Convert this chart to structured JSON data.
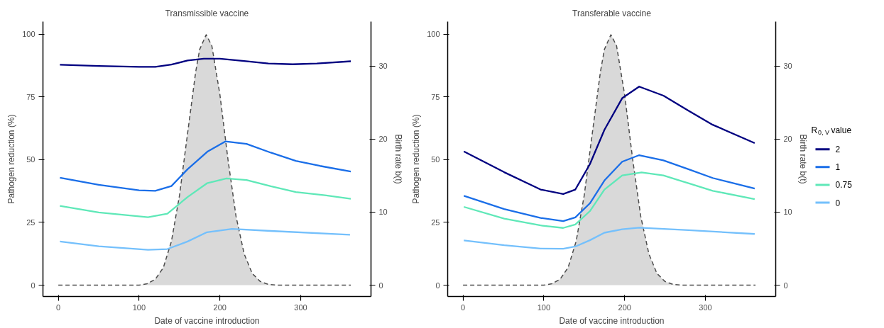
{
  "chart_data": [
    {
      "type": "line",
      "title": "Transmissible vaccine",
      "xlabel": "Date of vaccine introduction",
      "ylabel": "Pathogen reduction (%)",
      "y2label": "Birth rate b(t)",
      "xlim": [
        -19,
        387
      ],
      "xticks": [
        0,
        100,
        200,
        300
      ],
      "ylim": [
        -4.5,
        105
      ],
      "yticks": [
        0,
        25,
        50,
        75,
        100
      ],
      "y2lim": [
        -1.55,
        36.1
      ],
      "y2ticks": [
        0,
        10,
        20,
        30
      ],
      "grid": false,
      "legend": false,
      "series": [
        {
          "type": "area",
          "axis": "y2",
          "color": "#d9d9d9",
          "line_style": "dashed",
          "x": [
            0,
            50,
            100,
            110,
            120,
            130,
            140,
            150,
            160,
            170,
            175,
            183,
            190,
            200,
            210,
            220,
            230,
            240,
            250,
            260,
            270,
            320,
            362
          ],
          "values": [
            0,
            0,
            0,
            0.2,
            0.8,
            2.4,
            6.0,
            12.3,
            20.8,
            29.2,
            32.3,
            34.3,
            32.8,
            26.1,
            17.2,
            9.4,
            4.3,
            1.6,
            0.5,
            0.1,
            0,
            0,
            0
          ]
        },
        {
          "color": "#000080",
          "x": [
            2,
            50,
            100,
            120,
            140,
            160,
            180,
            200,
            230,
            260,
            290,
            320,
            362
          ],
          "values": [
            87.8,
            87.3,
            87.0,
            87.0,
            87.9,
            89.5,
            90.2,
            90.2,
            89.3,
            88.3,
            88.0,
            88.3,
            89.2
          ]
        },
        {
          "color": "#1a6ee8",
          "x": [
            2,
            50,
            100,
            120,
            140,
            160,
            185,
            207,
            233,
            263,
            294,
            324,
            362
          ],
          "values": [
            42.8,
            40.0,
            37.8,
            37.6,
            39.5,
            46.2,
            53.3,
            57.3,
            56.3,
            52.8,
            49.5,
            47.5,
            45.3
          ]
        },
        {
          "color": "#5fe8b8",
          "x": [
            2,
            50,
            111,
            135,
            160,
            184,
            208,
            233,
            263,
            294,
            330,
            362
          ],
          "values": [
            31.6,
            29.0,
            27.1,
            28.5,
            35.1,
            40.6,
            42.5,
            41.9,
            39.4,
            37.1,
            35.8,
            34.4
          ]
        },
        {
          "color": "#74c0fc",
          "x": [
            2,
            50,
            111,
            135,
            160,
            184,
            215,
            263,
            361
          ],
          "values": [
            17.4,
            15.5,
            14.1,
            14.4,
            17.4,
            21.1,
            22.4,
            21.6,
            20.1
          ]
        }
      ]
    },
    {
      "type": "line",
      "title": "Transferable vaccine",
      "xlabel": "Date of vaccine introduction",
      "ylabel": "Pathogen reduction (%)",
      "y2label": "Birth rate b(t)",
      "legend_title": "R$_{0, V}$ value",
      "xlim": [
        -19,
        387
      ],
      "xticks": [
        0,
        100,
        200,
        300
      ],
      "ylim": [
        -4.5,
        105
      ],
      "yticks": [
        0,
        25,
        50,
        75,
        100
      ],
      "y2lim": [
        -1.55,
        36.1
      ],
      "y2ticks": [
        0,
        10,
        20,
        30
      ],
      "grid": false,
      "legend": "right",
      "series": [
        {
          "type": "area",
          "axis": "y2",
          "color": "#d9d9d9",
          "line_style": "dashed",
          "x": [
            0,
            50,
            100,
            110,
            120,
            130,
            140,
            150,
            160,
            170,
            175,
            183,
            190,
            200,
            210,
            220,
            230,
            240,
            250,
            260,
            270,
            320,
            362
          ],
          "values": [
            0,
            0,
            0,
            0.2,
            0.8,
            2.4,
            6.0,
            12.3,
            20.8,
            29.2,
            32.3,
            34.3,
            32.8,
            26.1,
            17.2,
            9.4,
            4.3,
            1.6,
            0.5,
            0.1,
            0,
            0,
            0
          ]
        },
        {
          "name": "2",
          "color": "#000080",
          "x": [
            1,
            51,
            96,
            124,
            139,
            157,
            175,
            197,
            218,
            248,
            279,
            309,
            361
          ],
          "values": [
            53.3,
            45.0,
            38.1,
            36.3,
            38.1,
            48.2,
            61.9,
            74.5,
            79.1,
            75.5,
            69.5,
            63.9,
            56.6
          ]
        },
        {
          "name": "1",
          "color": "#1a6ee8",
          "x": [
            1,
            51,
            96,
            124,
            139,
            157,
            175,
            197,
            218,
            248,
            279,
            309,
            361
          ],
          "values": [
            35.6,
            30.3,
            26.8,
            25.5,
            27.0,
            32.6,
            41.7,
            49.2,
            51.8,
            49.7,
            46.2,
            42.7,
            38.5
          ]
        },
        {
          "name": "0.75",
          "color": "#5fe8b8",
          "x": [
            1,
            51,
            96,
            124,
            139,
            157,
            175,
            197,
            221,
            248,
            279,
            309,
            361
          ],
          "values": [
            31.2,
            26.5,
            23.8,
            22.8,
            24.2,
            29.5,
            38.1,
            43.7,
            44.9,
            43.7,
            40.6,
            37.6,
            34.3
          ]
        },
        {
          "name": "0",
          "color": "#74c0fc",
          "x": [
            1,
            51,
            96,
            124,
            139,
            157,
            175,
            197,
            218,
            279,
            361
          ],
          "values": [
            17.8,
            15.9,
            14.6,
            14.5,
            15.4,
            17.9,
            20.9,
            22.3,
            22.9,
            21.9,
            20.4
          ]
        }
      ]
    }
  ]
}
